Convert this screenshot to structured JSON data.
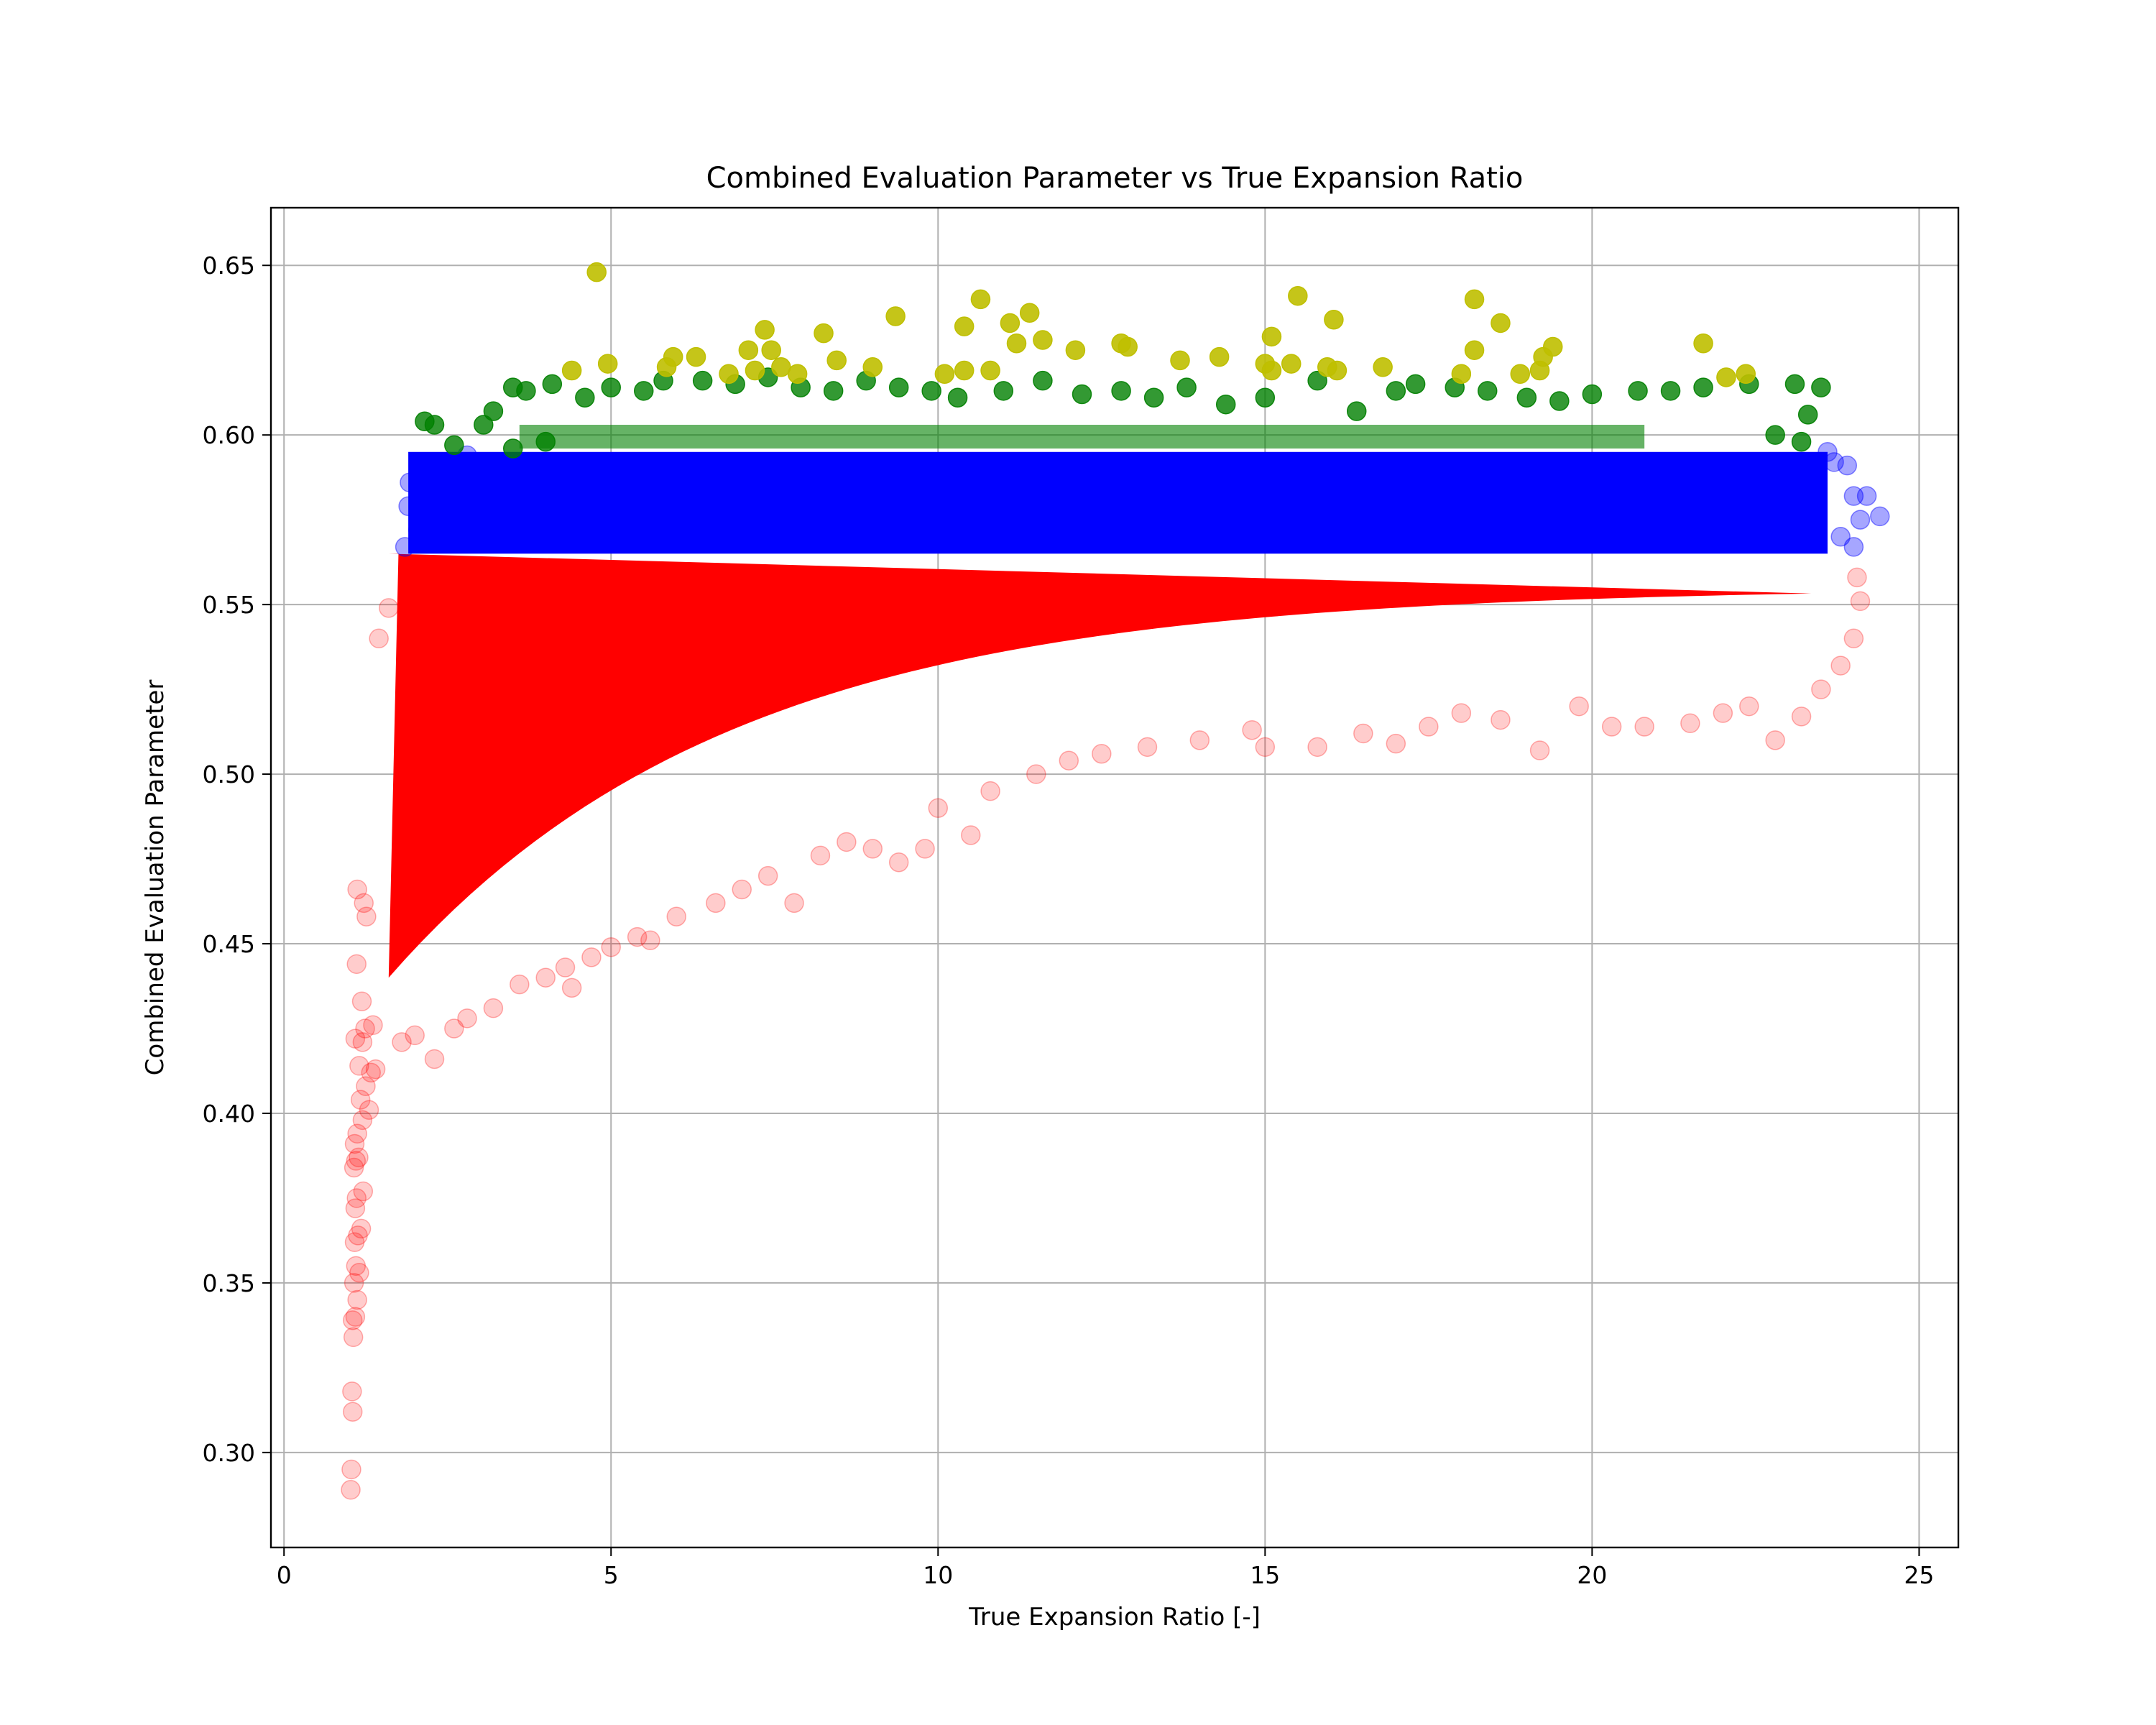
{
  "chart_data": {
    "type": "scatter",
    "title": "Combined Evaluation Parameter vs True Expansion Ratio",
    "xlabel": "True Expansion Ratio [-]",
    "ylabel": "Combined Evaluation Parameter",
    "xlim": [
      -0.2,
      25.6
    ],
    "ylim": [
      0.272,
      0.667
    ],
    "xticks": [
      0,
      5,
      10,
      15,
      20,
      25
    ],
    "yticks": [
      0.3,
      0.35,
      0.4,
      0.45,
      0.5,
      0.55,
      0.6,
      0.65
    ],
    "xtick_labels": [
      "0",
      "5",
      "10",
      "15",
      "20",
      "25"
    ],
    "ytick_labels": [
      "0.30",
      "0.35",
      "0.40",
      "0.45",
      "0.50",
      "0.55",
      "0.60",
      "0.65"
    ],
    "grid": true,
    "legend": "none",
    "series": [
      {
        "color": "#ff0000",
        "alpha": 0.2,
        "band": "y < 0.565",
        "points": [
          [
            1.02,
            0.289
          ],
          [
            1.03,
            0.295
          ],
          [
            1.05,
            0.312
          ],
          [
            1.04,
            0.318
          ],
          [
            1.06,
            0.334
          ],
          [
            1.05,
            0.339
          ],
          [
            1.09,
            0.34
          ],
          [
            1.12,
            0.345
          ],
          [
            1.07,
            0.35
          ],
          [
            1.15,
            0.353
          ],
          [
            1.1,
            0.355
          ],
          [
            1.08,
            0.362
          ],
          [
            1.13,
            0.364
          ],
          [
            1.18,
            0.366
          ],
          [
            1.09,
            0.372
          ],
          [
            1.11,
            0.375
          ],
          [
            1.21,
            0.377
          ],
          [
            1.07,
            0.384
          ],
          [
            1.1,
            0.386
          ],
          [
            1.14,
            0.387
          ],
          [
            1.08,
            0.391
          ],
          [
            1.12,
            0.394
          ],
          [
            1.2,
            0.398
          ],
          [
            1.3,
            0.401
          ],
          [
            1.17,
            0.404
          ],
          [
            1.25,
            0.408
          ],
          [
            1.33,
            0.412
          ],
          [
            1.15,
            0.414
          ],
          [
            1.4,
            0.413
          ],
          [
            1.2,
            0.421
          ],
          [
            1.09,
            0.422
          ],
          [
            1.24,
            0.425
          ],
          [
            1.36,
            0.426
          ],
          [
            1.19,
            0.433
          ],
          [
            1.11,
            0.444
          ],
          [
            1.26,
            0.458
          ],
          [
            1.22,
            0.462
          ],
          [
            1.12,
            0.466
          ],
          [
            1.45,
            0.54
          ],
          [
            1.6,
            0.549
          ],
          [
            2.3,
            0.416
          ],
          [
            1.8,
            0.421
          ],
          [
            2.0,
            0.423
          ],
          [
            2.6,
            0.425
          ],
          [
            2.8,
            0.428
          ],
          [
            3.2,
            0.431
          ],
          [
            3.6,
            0.438
          ],
          [
            4.0,
            0.44
          ],
          [
            4.3,
            0.443
          ],
          [
            4.4,
            0.437
          ],
          [
            4.7,
            0.446
          ],
          [
            5.0,
            0.449
          ],
          [
            5.4,
            0.452
          ],
          [
            5.6,
            0.451
          ],
          [
            6.0,
            0.458
          ],
          [
            6.6,
            0.462
          ],
          [
            7.0,
            0.466
          ],
          [
            7.4,
            0.47
          ],
          [
            7.8,
            0.462
          ],
          [
            8.2,
            0.476
          ],
          [
            8.6,
            0.48
          ],
          [
            9.0,
            0.478
          ],
          [
            9.4,
            0.474
          ],
          [
            9.8,
            0.478
          ],
          [
            10.0,
            0.49
          ],
          [
            10.5,
            0.482
          ],
          [
            10.8,
            0.495
          ],
          [
            11.5,
            0.5
          ],
          [
            12.0,
            0.504
          ],
          [
            12.5,
            0.506
          ],
          [
            13.2,
            0.508
          ],
          [
            14.0,
            0.51
          ],
          [
            14.8,
            0.513
          ],
          [
            15.0,
            0.508
          ],
          [
            15.8,
            0.508
          ],
          [
            16.5,
            0.512
          ],
          [
            17.0,
            0.509
          ],
          [
            17.5,
            0.514
          ],
          [
            18.0,
            0.518
          ],
          [
            18.6,
            0.516
          ],
          [
            19.2,
            0.507
          ],
          [
            19.8,
            0.52
          ],
          [
            20.3,
            0.514
          ],
          [
            20.8,
            0.514
          ],
          [
            21.5,
            0.515
          ],
          [
            22.0,
            0.518
          ],
          [
            22.4,
            0.52
          ],
          [
            22.8,
            0.51
          ],
          [
            23.2,
            0.517
          ],
          [
            23.5,
            0.525
          ],
          [
            23.8,
            0.532
          ],
          [
            24.0,
            0.54
          ],
          [
            24.1,
            0.551
          ],
          [
            24.05,
            0.558
          ]
        ]
      },
      {
        "color": "#0000ff",
        "alpha": 0.35,
        "band": "0.565 - 0.595",
        "points": [
          [
            1.85,
            0.567
          ],
          [
            1.9,
            0.579
          ],
          [
            1.92,
            0.586
          ],
          [
            2.05,
            0.572
          ],
          [
            2.2,
            0.58
          ],
          [
            2.4,
            0.586
          ],
          [
            2.6,
            0.591
          ],
          [
            2.8,
            0.594
          ],
          [
            23.6,
            0.595
          ],
          [
            23.7,
            0.592
          ],
          [
            23.9,
            0.591
          ],
          [
            24.0,
            0.582
          ],
          [
            24.2,
            0.582
          ],
          [
            24.4,
            0.576
          ],
          [
            24.1,
            0.575
          ],
          [
            23.8,
            0.57
          ],
          [
            24.0,
            0.567
          ]
        ]
      },
      {
        "color": "#008000",
        "alpha": 0.8,
        "band": "0.595 - 0.617",
        "points": [
          [
            2.15,
            0.604
          ],
          [
            2.3,
            0.603
          ],
          [
            3.05,
            0.603
          ],
          [
            3.2,
            0.607
          ],
          [
            3.5,
            0.614
          ],
          [
            3.7,
            0.613
          ],
          [
            4.1,
            0.615
          ],
          [
            4.6,
            0.611
          ],
          [
            5.0,
            0.614
          ],
          [
            5.5,
            0.613
          ],
          [
            5.8,
            0.616
          ],
          [
            6.4,
            0.616
          ],
          [
            6.9,
            0.615
          ],
          [
            7.4,
            0.617
          ],
          [
            7.9,
            0.614
          ],
          [
            8.4,
            0.613
          ],
          [
            8.9,
            0.616
          ],
          [
            9.4,
            0.614
          ],
          [
            9.9,
            0.613
          ],
          [
            10.3,
            0.611
          ],
          [
            11.0,
            0.613
          ],
          [
            11.6,
            0.616
          ],
          [
            12.2,
            0.612
          ],
          [
            12.8,
            0.613
          ],
          [
            13.3,
            0.611
          ],
          [
            13.8,
            0.614
          ],
          [
            14.4,
            0.609
          ],
          [
            15.0,
            0.611
          ],
          [
            15.8,
            0.616
          ],
          [
            16.4,
            0.607
          ],
          [
            17.0,
            0.613
          ],
          [
            17.3,
            0.615
          ],
          [
            17.9,
            0.614
          ],
          [
            18.4,
            0.613
          ],
          [
            19.0,
            0.611
          ],
          [
            19.5,
            0.61
          ],
          [
            20.0,
            0.612
          ],
          [
            20.7,
            0.613
          ],
          [
            21.2,
            0.613
          ],
          [
            21.7,
            0.614
          ],
          [
            22.4,
            0.615
          ],
          [
            23.1,
            0.615
          ],
          [
            23.3,
            0.606
          ],
          [
            23.5,
            0.614
          ],
          [
            23.2,
            0.598
          ],
          [
            22.8,
            0.6
          ],
          [
            2.6,
            0.597
          ],
          [
            3.5,
            0.596
          ],
          [
            4.0,
            0.598
          ]
        ]
      },
      {
        "color": "#bfbf00",
        "alpha": 0.9,
        "band": "y > 0.617",
        "points": [
          [
            4.78,
            0.648
          ],
          [
            4.4,
            0.619
          ],
          [
            4.95,
            0.621
          ],
          [
            5.85,
            0.62
          ],
          [
            5.95,
            0.623
          ],
          [
            6.3,
            0.623
          ],
          [
            6.8,
            0.618
          ],
          [
            7.1,
            0.625
          ],
          [
            7.2,
            0.619
          ],
          [
            7.35,
            0.631
          ],
          [
            7.45,
            0.625
          ],
          [
            7.6,
            0.62
          ],
          [
            7.85,
            0.618
          ],
          [
            8.25,
            0.63
          ],
          [
            8.45,
            0.622
          ],
          [
            9.0,
            0.62
          ],
          [
            9.35,
            0.635
          ],
          [
            10.1,
            0.618
          ],
          [
            10.4,
            0.619
          ],
          [
            10.4,
            0.632
          ],
          [
            10.65,
            0.64
          ],
          [
            10.8,
            0.619
          ],
          [
            11.1,
            0.633
          ],
          [
            11.2,
            0.627
          ],
          [
            11.4,
            0.636
          ],
          [
            11.6,
            0.628
          ],
          [
            12.1,
            0.625
          ],
          [
            12.8,
            0.627
          ],
          [
            12.9,
            0.626
          ],
          [
            13.7,
            0.622
          ],
          [
            14.3,
            0.623
          ],
          [
            15.0,
            0.621
          ],
          [
            15.1,
            0.619
          ],
          [
            15.1,
            0.629
          ],
          [
            15.4,
            0.621
          ],
          [
            15.5,
            0.641
          ],
          [
            15.95,
            0.62
          ],
          [
            16.1,
            0.619
          ],
          [
            16.05,
            0.634
          ],
          [
            16.8,
            0.62
          ],
          [
            18.0,
            0.618
          ],
          [
            18.2,
            0.64
          ],
          [
            18.2,
            0.625
          ],
          [
            18.6,
            0.633
          ],
          [
            18.9,
            0.618
          ],
          [
            19.2,
            0.619
          ],
          [
            19.25,
            0.623
          ],
          [
            19.4,
            0.626
          ],
          [
            21.7,
            0.627
          ],
          [
            22.05,
            0.617
          ],
          [
            22.35,
            0.618
          ]
        ]
      }
    ]
  }
}
